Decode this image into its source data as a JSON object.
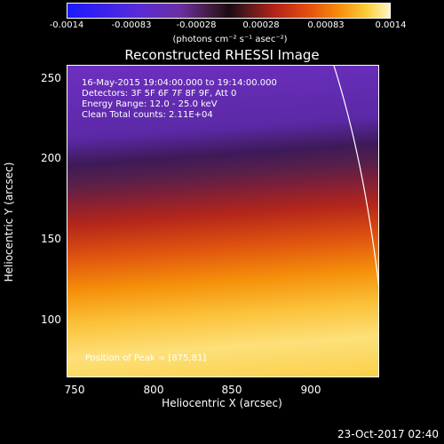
{
  "colorbar": {
    "ticks": [
      "-0.0014",
      "-0.00083",
      "-0.00028",
      "0.00028",
      "0.00083",
      "0.0014"
    ],
    "unit": "(photons cm⁻² s⁻¹ asec⁻²)",
    "colors": [
      "#1a1aff",
      "#6b2fa0",
      "#1a0a14",
      "#b3221a",
      "#f58c0a",
      "#fff4c8"
    ]
  },
  "title": "Reconstructed RHESSI Image",
  "overlay": {
    "time": "16-May-2015 19:04:00.000 to 19:14:00.000",
    "detectors": "Detectors: 3F 5F 6F 7F 8F 9F, Att 0",
    "energy": "Energy Range: 12.0 - 25.0 keV",
    "clean": "Clean     Total counts: 2.11E+04",
    "peak": "Position of Peak = [875,81]"
  },
  "axes": {
    "x_label": "Heliocentric X (arcsec)",
    "y_label": "Heliocentric Y (arcsec)",
    "x_ticks": [
      "750",
      "800",
      "850",
      "900"
    ],
    "y_ticks": [
      "250",
      "200",
      "150",
      "100"
    ]
  },
  "footer_date": "23-Oct-2017 02:40"
}
